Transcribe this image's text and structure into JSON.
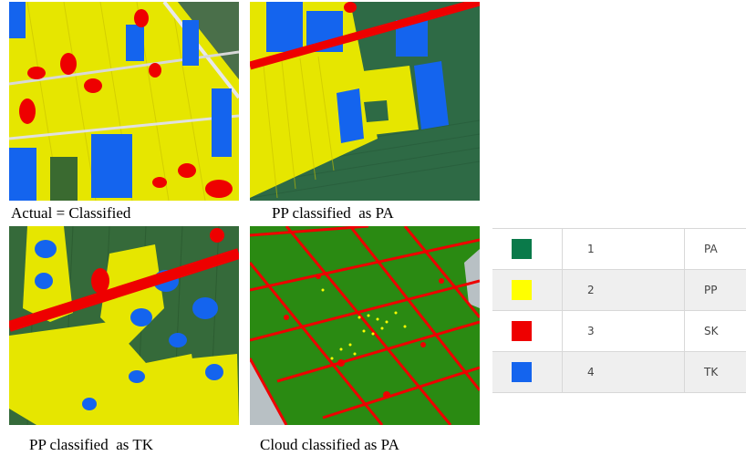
{
  "panels": [
    {
      "caption": "Actual = Classified"
    },
    {
      "caption": "PP classified  as PA"
    },
    {
      "caption": "PP classified  as TK"
    },
    {
      "caption": "Cloud classified as PA"
    }
  ],
  "legend": [
    {
      "color": "#0a7a4a",
      "code": "1",
      "label": "PA"
    },
    {
      "color": "#ffff00",
      "code": "2",
      "label": "PP"
    },
    {
      "color": "#ee0000",
      "code": "3",
      "label": "SK"
    },
    {
      "color": "#1464ee",
      "code": "4",
      "label": "TK"
    }
  ]
}
